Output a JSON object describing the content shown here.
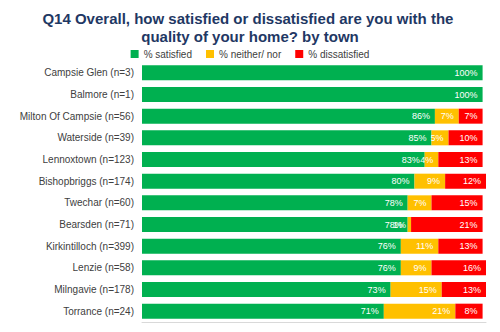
{
  "chart_data": {
    "type": "bar",
    "title": "Q14 Overall, how satisfied or dissatisfied are you with the quality of your home? by town",
    "orientation": "horizontal",
    "stacked": true,
    "data_labels": true,
    "tick_labels": "y",
    "grid": false,
    "legend": "top",
    "xlim": [
      0,
      101
    ],
    "categories": [
      "Campsie Glen (n=3)",
      "Balmore (n=1)",
      "Milton Of Campsie (n=56)",
      "Waterside (n=39)",
      "Lennoxtown (n=123)",
      "Bishopbriggs (n=174)",
      "Twechar (n=60)",
      "Bearsden (n=71)",
      "Kirkintilloch (n=399)",
      "Lenzie (n=58)",
      "Milngavie (n=178)",
      "Torrance (n=24)"
    ],
    "series": [
      {
        "name": "% satisfied",
        "color": "#00b050",
        "values": [
          100,
          100,
          86,
          85,
          83,
          80,
          78,
          78,
          76,
          76,
          73,
          71
        ],
        "value_labels": [
          "100%",
          "100%",
          "86%",
          "85%",
          "83%",
          "80%",
          "78%",
          "78%",
          "76%",
          "76%",
          "73%",
          "71%"
        ]
      },
      {
        "name": "% neither/ nor",
        "color": "#ffc000",
        "values": [
          null,
          null,
          7,
          5,
          4,
          9,
          7,
          1,
          11,
          9,
          15,
          21
        ],
        "value_labels": [
          null,
          null,
          "7%",
          "5%",
          "4%",
          "9%",
          "7%",
          "1%",
          "11%",
          "9%",
          "15%",
          "21%"
        ]
      },
      {
        "name": "% dissatisfied",
        "color": "#ff0000",
        "values": [
          null,
          null,
          7,
          10,
          13,
          12,
          15,
          21,
          13,
          16,
          13,
          8
        ],
        "value_labels": [
          null,
          null,
          "7%",
          "10%",
          "13%",
          "12%",
          "15%",
          "21%",
          "13%",
          "16%",
          "13%",
          "8%"
        ]
      }
    ]
  }
}
